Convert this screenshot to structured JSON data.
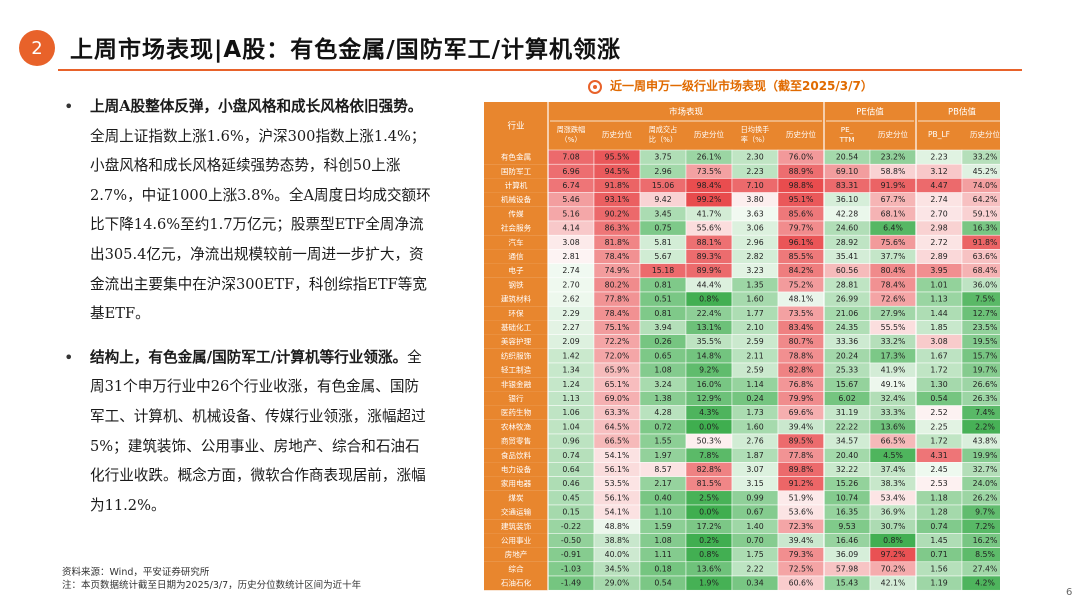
{
  "page": {
    "badge": "2",
    "title": "上周市场表现|A股：有色金属/国防军工/计算机领涨",
    "page_number": "6"
  },
  "bullets": [
    {
      "lead": "上周A股整体反弹，小盘风格和成长风格依旧强势。",
      "text": "全周上证指数上涨1.6%，沪深300指数上涨1.4%；小盘风格和成长风格延续强势态势，科创50上涨2.7%，中证1000上涨3.8%。全A周度日均成交额环比下降14.6%至约1.7万亿元；股票型ETF全周净流出305.4亿元，净流出规模较前一周进一步扩大，资金流出主要集中在沪深300ETF，科创综指ETF等宽基ETF。"
    },
    {
      "lead": "结构上，有色金属/国防军工/计算机等行业领涨。",
      "text": "全周31个申万行业中26个行业收涨，有色金属、国防军工、计算机、机械设备、传媒行业领涨，涨幅超过5%；建筑装饰、公用事业、房地产、综合和石油石化行业收跌。概念方面，微软合作商表现居前，涨幅为11.2%。"
    }
  ],
  "source": {
    "line1": "资料来源：Wind，平安证券研究所",
    "line2": "注：本页数据统计截至日期为2025/3/7，历史分位数统计区间为近十年"
  },
  "table": {
    "title": "近一周申万一级行业市场表现（截至2025/3/7）",
    "header_industry": "行业",
    "groups": [
      "市场表现",
      "PE估值",
      "PB估值"
    ],
    "columns": [
      "周涨跌幅（%）",
      "历史分位",
      "周成交占比（%）",
      "历史分位",
      "日均换手率（%）",
      "历史分位",
      "PE_TTM",
      "历史分位",
      "PB_LF",
      "历史分位"
    ],
    "colors": {
      "header": "#e8862e",
      "header_text": "#ffffff",
      "red": "#e8484a",
      "green": "#3fae4f",
      "industry_text": "#c0392b"
    },
    "rows": [
      [
        "有色金属",
        "7.08",
        "95.5%",
        "3.75",
        "26.1%",
        "2.30",
        "76.0%",
        "20.54",
        "23.2%",
        "2.23",
        "33.2%"
      ],
      [
        "国防军工",
        "6.96",
        "94.5%",
        "2.96",
        "73.5%",
        "2.23",
        "88.9%",
        "69.10",
        "58.8%",
        "3.12",
        "45.2%"
      ],
      [
        "计算机",
        "6.74",
        "91.8%",
        "15.06",
        "98.4%",
        "7.10",
        "98.8%",
        "83.31",
        "91.9%",
        "4.47",
        "74.0%"
      ],
      [
        "机械设备",
        "5.46",
        "93.1%",
        "9.42",
        "99.2%",
        "3.80",
        "95.1%",
        "36.10",
        "67.7%",
        "2.74",
        "64.2%"
      ],
      [
        "传媒",
        "5.16",
        "90.2%",
        "3.45",
        "41.7%",
        "3.63",
        "85.6%",
        "42.28",
        "68.1%",
        "2.70",
        "59.1%"
      ],
      [
        "社会服务",
        "4.14",
        "86.3%",
        "0.75",
        "55.6%",
        "3.06",
        "79.7%",
        "24.60",
        "6.4%",
        "2.98",
        "16.3%"
      ],
      [
        "汽车",
        "3.08",
        "81.8%",
        "5.81",
        "88.1%",
        "2.96",
        "96.1%",
        "28.92",
        "75.6%",
        "2.72",
        "91.8%"
      ],
      [
        "通信",
        "2.81",
        "78.4%",
        "5.67",
        "89.3%",
        "2.82",
        "85.5%",
        "35.41",
        "37.7%",
        "2.89",
        "63.6%"
      ],
      [
        "电子",
        "2.74",
        "74.9%",
        "15.18",
        "89.9%",
        "3.23",
        "84.2%",
        "60.56",
        "80.4%",
        "3.95",
        "68.4%"
      ],
      [
        "钢铁",
        "2.70",
        "80.2%",
        "0.81",
        "44.4%",
        "1.35",
        "75.2%",
        "28.81",
        "78.4%",
        "1.01",
        "36.0%"
      ],
      [
        "建筑材料",
        "2.62",
        "77.8%",
        "0.51",
        "0.8%",
        "1.60",
        "48.1%",
        "26.99",
        "72.6%",
        "1.13",
        "7.5%"
      ],
      [
        "环保",
        "2.29",
        "78.4%",
        "0.81",
        "22.4%",
        "1.77",
        "73.5%",
        "21.06",
        "27.9%",
        "1.44",
        "12.7%"
      ],
      [
        "基础化工",
        "2.27",
        "75.1%",
        "3.94",
        "13.1%",
        "2.10",
        "83.4%",
        "24.35",
        "55.5%",
        "1.85",
        "23.5%"
      ],
      [
        "美容护理",
        "2.09",
        "72.2%",
        "0.26",
        "35.5%",
        "2.59",
        "80.7%",
        "33.36",
        "33.2%",
        "3.08",
        "19.5%"
      ],
      [
        "纺织服饰",
        "1.42",
        "72.0%",
        "0.65",
        "14.8%",
        "2.11",
        "78.8%",
        "20.24",
        "17.3%",
        "1.67",
        "15.7%"
      ],
      [
        "轻工制造",
        "1.34",
        "65.9%",
        "1.08",
        "9.2%",
        "2.59",
        "82.8%",
        "25.33",
        "41.9%",
        "1.72",
        "19.7%"
      ],
      [
        "非银金融",
        "1.24",
        "65.1%",
        "3.24",
        "16.0%",
        "1.14",
        "76.8%",
        "15.67",
        "49.1%",
        "1.30",
        "26.6%"
      ],
      [
        "银行",
        "1.13",
        "69.0%",
        "1.38",
        "12.9%",
        "0.24",
        "79.9%",
        "6.02",
        "32.4%",
        "0.54",
        "26.3%"
      ],
      [
        "医药生物",
        "1.06",
        "63.3%",
        "4.28",
        "4.3%",
        "1.73",
        "69.6%",
        "31.19",
        "33.3%",
        "2.52",
        "7.4%"
      ],
      [
        "农林牧渔",
        "1.04",
        "64.5%",
        "0.72",
        "0.0%",
        "1.60",
        "39.4%",
        "22.22",
        "13.6%",
        "2.25",
        "2.2%"
      ],
      [
        "商贸零售",
        "0.96",
        "66.5%",
        "1.55",
        "50.3%",
        "2.76",
        "89.5%",
        "34.57",
        "66.5%",
        "1.72",
        "43.8%"
      ],
      [
        "食品饮料",
        "0.74",
        "54.1%",
        "1.97",
        "7.8%",
        "1.87",
        "77.8%",
        "20.40",
        "4.5%",
        "4.31",
        "19.9%"
      ],
      [
        "电力设备",
        "0.64",
        "56.1%",
        "8.57",
        "82.8%",
        "3.07",
        "89.8%",
        "32.22",
        "37.4%",
        "2.45",
        "32.7%"
      ],
      [
        "家用电器",
        "0.46",
        "53.5%",
        "2.17",
        "81.5%",
        "3.15",
        "91.2%",
        "15.26",
        "38.3%",
        "2.53",
        "24.0%"
      ],
      [
        "煤炭",
        "0.45",
        "56.1%",
        "0.40",
        "2.5%",
        "0.99",
        "51.9%",
        "10.74",
        "53.4%",
        "1.18",
        "26.2%"
      ],
      [
        "交通运输",
        "0.15",
        "54.1%",
        "1.10",
        "0.0%",
        "0.67",
        "53.6%",
        "16.35",
        "36.9%",
        "1.28",
        "9.7%"
      ],
      [
        "建筑装饰",
        "-0.22",
        "48.8%",
        "1.59",
        "17.2%",
        "1.40",
        "72.3%",
        "9.53",
        "30.7%",
        "0.74",
        "7.2%"
      ],
      [
        "公用事业",
        "-0.50",
        "38.8%",
        "1.08",
        "0.2%",
        "0.70",
        "39.4%",
        "16.46",
        "0.8%",
        "1.45",
        "16.2%"
      ],
      [
        "房地产",
        "-0.91",
        "40.0%",
        "1.11",
        "0.8%",
        "1.75",
        "79.3%",
        "36.09",
        "97.2%",
        "0.71",
        "8.5%"
      ],
      [
        "综合",
        "-1.03",
        "34.5%",
        "0.18",
        "13.6%",
        "2.22",
        "72.5%",
        "57.98",
        "70.2%",
        "1.56",
        "27.4%"
      ],
      [
        "石油石化",
        "-1.49",
        "29.0%",
        "0.54",
        "1.9%",
        "0.34",
        "60.6%",
        "15.43",
        "42.1%",
        "1.19",
        "4.2%"
      ]
    ]
  }
}
